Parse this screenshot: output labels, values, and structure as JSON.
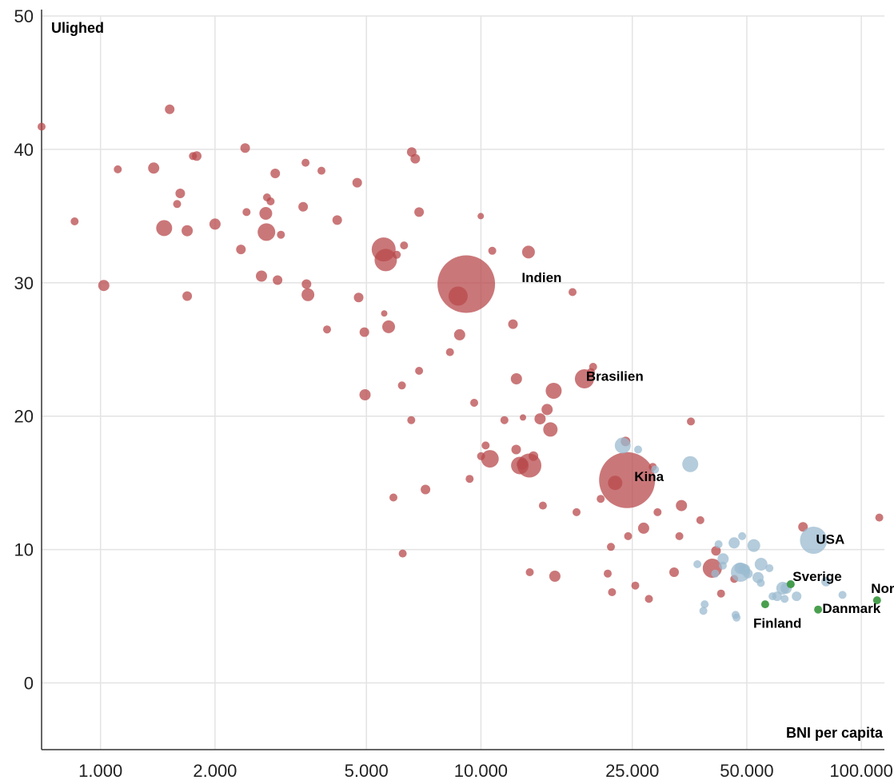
{
  "chart_data": {
    "type": "scatter",
    "title": "",
    "ylabel": "Ulighed",
    "xlabel": "BNI per capita",
    "x_scale": "log",
    "xlim": [
      700,
      115000
    ],
    "ylim": [
      -5,
      50
    ],
    "grid": true,
    "x_ticks": [
      {
        "value": 1000,
        "label": "1.000"
      },
      {
        "value": 2000,
        "label": "2.000"
      },
      {
        "value": 5000,
        "label": "5.000"
      },
      {
        "value": 10000,
        "label": "10.000"
      },
      {
        "value": 25000,
        "label": "25.000"
      },
      {
        "value": 50000,
        "label": "50.000"
      },
      {
        "value": 100000,
        "label": "100.000"
      }
    ],
    "y_ticks": [
      {
        "value": 0,
        "label": "0"
      },
      {
        "value": 10,
        "label": "10"
      },
      {
        "value": 20,
        "label": "20"
      },
      {
        "value": 30,
        "label": "30"
      },
      {
        "value": 40,
        "label": "40"
      },
      {
        "value": 50,
        "label": "50"
      }
    ],
    "colors": {
      "red": "#b84a4c",
      "blue": "#9bbbd0",
      "green": "#3f9a45"
    },
    "labels": [
      {
        "text": "Indien",
        "x": 12800,
        "y": 30.4
      },
      {
        "text": "Brasilien",
        "x": 18900,
        "y": 23.0
      },
      {
        "text": "Kina",
        "x": 25300,
        "y": 15.5
      },
      {
        "text": "USA",
        "x": 76000,
        "y": 10.8
      },
      {
        "text": "Sverige",
        "x": 66000,
        "y": 8.0
      },
      {
        "text": "Norge",
        "x": 106000,
        "y": 7.1
      },
      {
        "text": "Danmark",
        "x": 79000,
        "y": 5.6
      },
      {
        "text": "Finland",
        "x": 52000,
        "y": 4.5
      }
    ],
    "series": [
      {
        "group": "red",
        "points": [
          [
            700,
            41.7,
            5
          ],
          [
            855,
            34.6,
            5
          ],
          [
            1020,
            29.8,
            7
          ],
          [
            1110,
            38.5,
            5
          ],
          [
            1380,
            38.6,
            7
          ],
          [
            1470,
            34.1,
            10
          ],
          [
            1520,
            43.0,
            6
          ],
          [
            1620,
            36.7,
            6
          ],
          [
            1590,
            35.9,
            5
          ],
          [
            1690,
            33.9,
            7
          ],
          [
            1690,
            29.0,
            6
          ],
          [
            1750,
            39.5,
            5
          ],
          [
            1790,
            39.5,
            6
          ],
          [
            2000,
            34.4,
            7
          ],
          [
            2340,
            32.5,
            6
          ],
          [
            2400,
            40.1,
            6
          ],
          [
            2420,
            35.3,
            5
          ],
          [
            2650,
            30.5,
            7
          ],
          [
            2730,
            33.8,
            11
          ],
          [
            2720,
            35.2,
            8
          ],
          [
            2740,
            36.4,
            5
          ],
          [
            2800,
            36.1,
            5
          ],
          [
            2880,
            38.2,
            6
          ],
          [
            2920,
            30.2,
            6
          ],
          [
            2980,
            33.6,
            5
          ],
          [
            3410,
            35.7,
            6
          ],
          [
            3460,
            39.0,
            5
          ],
          [
            3480,
            29.9,
            6
          ],
          [
            3510,
            29.1,
            8
          ],
          [
            3810,
            38.4,
            5
          ],
          [
            3940,
            26.5,
            5
          ],
          [
            4190,
            34.7,
            6
          ],
          [
            4730,
            37.5,
            6
          ],
          [
            4770,
            28.9,
            6
          ],
          [
            4940,
            26.3,
            6
          ],
          [
            4960,
            21.6,
            7
          ],
          [
            5550,
            32.5,
            15
          ],
          [
            5620,
            31.7,
            14
          ],
          [
            5570,
            27.7,
            4
          ],
          [
            5720,
            26.7,
            8
          ],
          [
            6010,
            32.1,
            5
          ],
          [
            6280,
            32.8,
            5
          ],
          [
            6200,
            22.3,
            5
          ],
          [
            6560,
            19.7,
            5
          ],
          [
            6230,
            9.7,
            5
          ],
          [
            6580,
            39.8,
            6
          ],
          [
            6720,
            39.3,
            6
          ],
          [
            6880,
            35.3,
            6
          ],
          [
            6880,
            23.4,
            5
          ],
          [
            5890,
            13.9,
            5
          ],
          [
            7150,
            14.5,
            6
          ],
          [
            8290,
            24.8,
            5
          ],
          [
            8710,
            29.0,
            12
          ],
          [
            8790,
            26.1,
            7
          ],
          [
            9150,
            29.9,
            36
          ],
          [
            9340,
            15.3,
            5
          ],
          [
            9600,
            21.0,
            5
          ],
          [
            9990,
            35.0,
            4
          ],
          [
            10010,
            17.0,
            5
          ],
          [
            10290,
            17.8,
            5
          ],
          [
            10560,
            16.8,
            11
          ],
          [
            10710,
            32.4,
            5
          ],
          [
            11530,
            19.7,
            5
          ],
          [
            12140,
            26.9,
            6
          ],
          [
            12380,
            17.5,
            6
          ],
          [
            12400,
            22.8,
            7
          ],
          [
            12660,
            16.3,
            11
          ],
          [
            12900,
            19.9,
            4
          ],
          [
            12840,
            16.4,
            7
          ],
          [
            13340,
            32.3,
            8
          ],
          [
            13410,
            16.3,
            15
          ],
          [
            13740,
            17.0,
            6
          ],
          [
            13440,
            8.3,
            5
          ],
          [
            14310,
            19.8,
            7
          ],
          [
            14550,
            13.3,
            5
          ],
          [
            14930,
            20.5,
            7
          ],
          [
            15650,
            8.0,
            7
          ],
          [
            15230,
            19.0,
            9
          ],
          [
            15530,
            21.9,
            10
          ],
          [
            17410,
            29.3,
            5
          ],
          [
            17840,
            12.8,
            5
          ],
          [
            18720,
            22.8,
            12
          ],
          [
            19460,
            23.3,
            5
          ],
          [
            19720,
            23.7,
            5
          ],
          [
            20650,
            13.8,
            5
          ],
          [
            21550,
            8.2,
            5
          ],
          [
            21970,
            10.2,
            5
          ],
          [
            22120,
            6.8,
            5
          ],
          [
            22540,
            15.0,
            9
          ],
          [
            24220,
            15.2,
            35
          ],
          [
            24000,
            18.1,
            6
          ],
          [
            24380,
            11.0,
            5
          ],
          [
            25460,
            7.3,
            5
          ],
          [
            26780,
            11.6,
            7
          ],
          [
            27650,
            6.3,
            5
          ],
          [
            28290,
            16.2,
            5
          ],
          [
            29130,
            12.8,
            5
          ],
          [
            32200,
            8.3,
            6
          ],
          [
            33250,
            11.0,
            5
          ],
          [
            33660,
            13.3,
            7
          ],
          [
            35640,
            19.6,
            5
          ],
          [
            37740,
            12.2,
            5
          ],
          [
            40590,
            8.6,
            12
          ],
          [
            41500,
            9.9,
            6
          ],
          [
            42780,
            6.7,
            5
          ],
          [
            46340,
            7.8,
            5
          ],
          [
            70260,
            11.7,
            6
          ],
          [
            111500,
            12.4,
            5
          ]
        ]
      },
      {
        "group": "blue",
        "points": [
          [
            23600,
            17.8,
            10
          ],
          [
            25900,
            17.5,
            5
          ],
          [
            28700,
            16.0,
            5
          ],
          [
            35500,
            16.4,
            10
          ],
          [
            37070,
            8.9,
            5
          ],
          [
            38440,
            5.4,
            5
          ],
          [
            38730,
            5.9,
            5
          ],
          [
            41300,
            8.2,
            5
          ],
          [
            42150,
            10.4,
            5
          ],
          [
            43260,
            8.8,
            5
          ],
          [
            43320,
            9.3,
            7
          ],
          [
            46320,
            10.5,
            7
          ],
          [
            46730,
            5.1,
            5
          ],
          [
            47000,
            4.9,
            5
          ],
          [
            48010,
            8.6,
            7
          ],
          [
            48130,
            8.3,
            12
          ],
          [
            48610,
            11.0,
            5
          ],
          [
            49320,
            8.5,
            7
          ],
          [
            50330,
            8.2,
            6
          ],
          [
            52160,
            10.3,
            8
          ],
          [
            53520,
            7.9,
            7
          ],
          [
            54510,
            8.9,
            8
          ],
          [
            54410,
            7.5,
            5
          ],
          [
            57340,
            8.6,
            5
          ],
          [
            58440,
            6.5,
            5
          ],
          [
            60060,
            6.5,
            6
          ],
          [
            62120,
            7.1,
            8
          ],
          [
            62850,
            6.3,
            5
          ],
          [
            63460,
            7.1,
            7
          ],
          [
            65230,
            7.4,
            5
          ],
          [
            67580,
            6.5,
            6
          ],
          [
            74890,
            10.7,
            17
          ],
          [
            80780,
            7.6,
            6
          ],
          [
            89250,
            6.6,
            5
          ]
        ]
      },
      {
        "group": "green",
        "points": [
          [
            55890,
            5.9,
            5
          ],
          [
            65200,
            7.4,
            5
          ],
          [
            77000,
            5.5,
            5
          ],
          [
            110000,
            6.2,
            5
          ]
        ]
      }
    ]
  }
}
